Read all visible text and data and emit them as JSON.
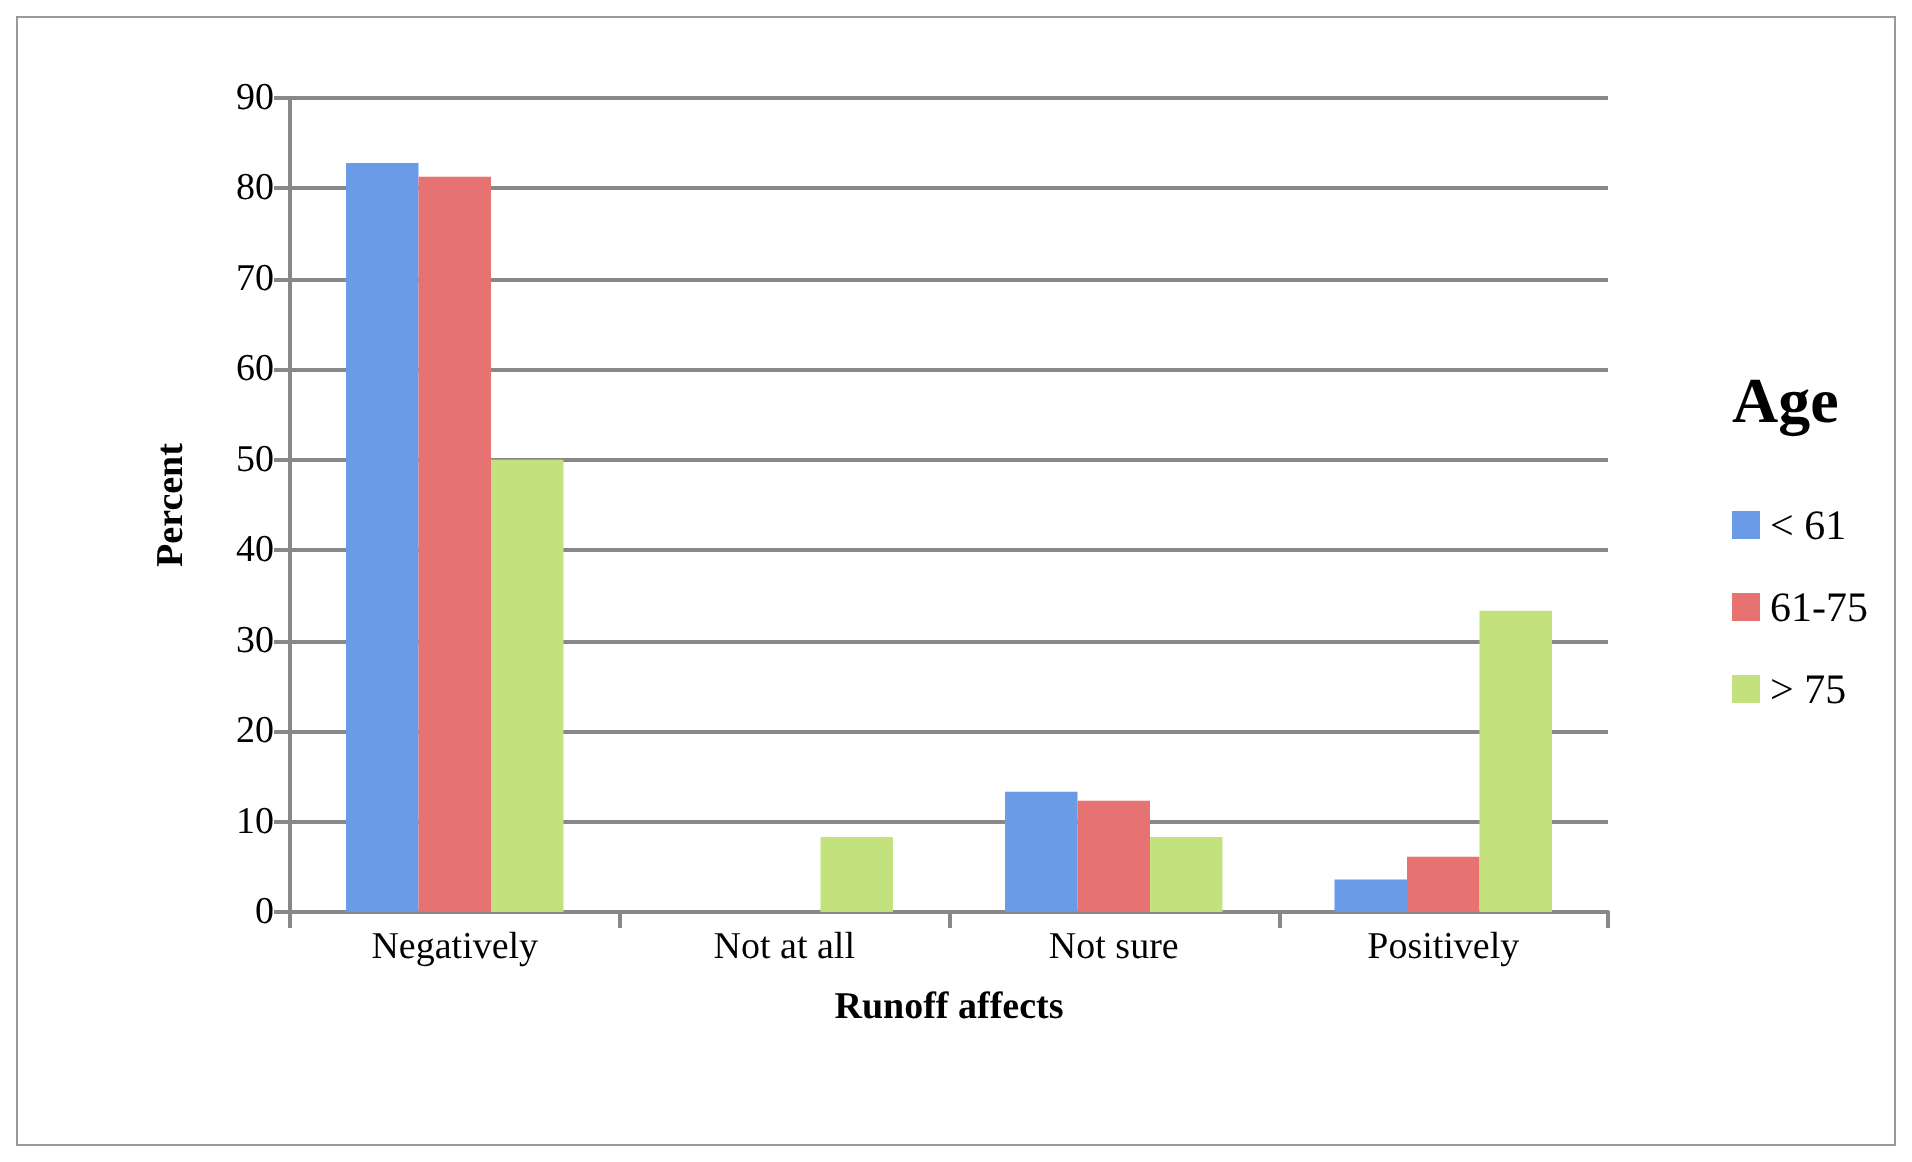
{
  "chart_data": {
    "type": "bar",
    "xlabel": "Runoff affects",
    "ylabel": "Percent",
    "legend_title": "Age",
    "legend": "right",
    "categories": [
      "Negatively",
      "Not at all",
      "Not sure",
      "Positively"
    ],
    "series": [
      {
        "name": "< 61",
        "color": "#6a9be6",
        "values": [
          82.8,
          0,
          13.3,
          3.6
        ]
      },
      {
        "name": "61-75",
        "color": "#e77272",
        "values": [
          81.3,
          0,
          12.3,
          6.1
        ]
      },
      {
        "name": "> 75",
        "color": "#c3e27e",
        "values": [
          50,
          8.3,
          8.3,
          33.3
        ]
      }
    ],
    "ylim": [
      0,
      90
    ],
    "yticks": [
      0,
      10,
      20,
      30,
      40,
      50,
      60,
      70,
      80,
      90
    ],
    "grid": "y"
  }
}
